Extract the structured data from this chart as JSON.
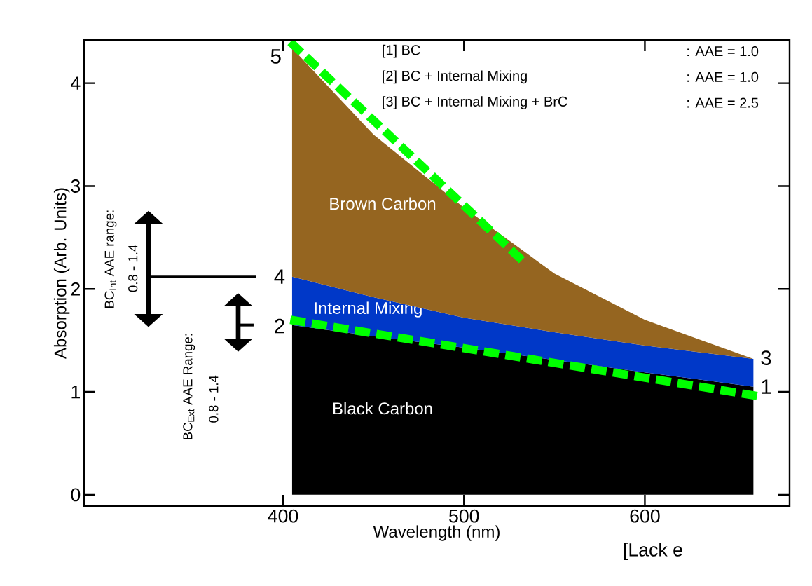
{
  "chart_data": {
    "type": "area",
    "stacked": true,
    "xlabel": "Wavelength (nm)",
    "ylabel": "Absorption (Arb. Units)",
    "x": [
      405,
      450,
      500,
      550,
      600,
      660
    ],
    "xlim": [
      290,
      680
    ],
    "ylim": [
      -0.11,
      4.42
    ],
    "xticks": [
      400,
      500,
      600
    ],
    "yticks": [
      0,
      1,
      2,
      3,
      4
    ],
    "grid": false,
    "series": [
      {
        "name": "Black Carbon",
        "color": "#000000",
        "values": [
          1.65,
          1.54,
          1.43,
          1.31,
          1.19,
          1.05
        ]
      },
      {
        "name": "Internal Mixing",
        "color": "#0038c8",
        "values": [
          0.47,
          0.38,
          0.29,
          0.27,
          0.26,
          0.27
        ]
      },
      {
        "name": "Brown Carbon",
        "color": "#956520",
        "values": [
          2.22,
          1.58,
          1.07,
          0.57,
          0.25,
          0.0
        ]
      },
      {
        "type": "line",
        "color": "#00ff00",
        "line_style": "dashed",
        "x": [
          404,
          662
        ],
        "values": [
          1.7,
          0.96
        ]
      },
      {
        "type": "line",
        "color": "#00ff00",
        "line_style": "dashed",
        "x": [
          404,
          532
        ],
        "values": [
          4.4,
          2.28
        ]
      }
    ],
    "annotations": [
      "[1] BC",
      ": AAE = 1.0",
      "[2] BC + Internal Mixing",
      ": AAE = 1.0",
      "[3] BC + Internal Mixing + BrC",
      ": AAE = 2.5",
      "5",
      "4",
      "2",
      "3",
      "1",
      "BC$_{Int}$ AAE range:",
      "0.8 - 1.4",
      "BC$_{Ext}$  AAE Range:",
      "0.8 - 1.4",
      "[Lack e"
    ]
  }
}
